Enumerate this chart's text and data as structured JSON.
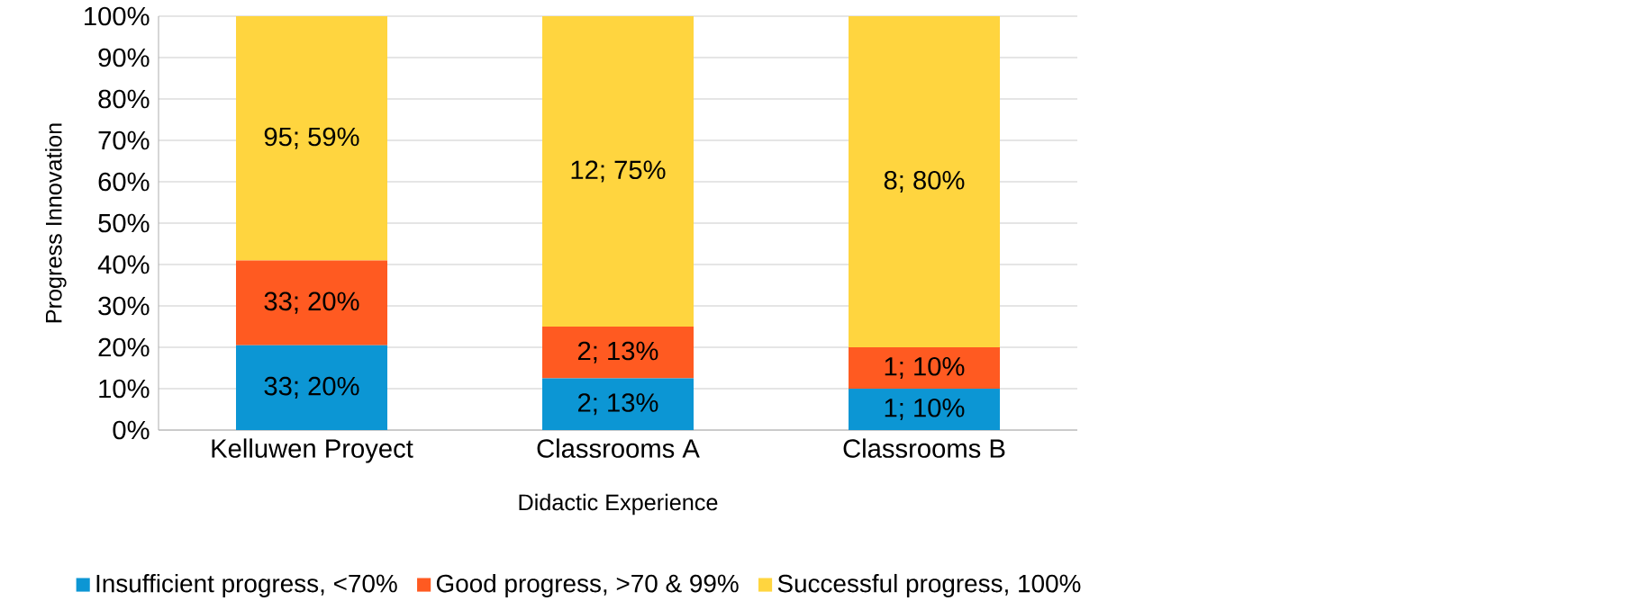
{
  "chart_data": {
    "type": "bar",
    "stacked": true,
    "xlabel": "Didactic Experience",
    "ylabel": "Progress Innovation",
    "categories": [
      "Kelluwen Proyect",
      "Classrooms A",
      "Classrooms B"
    ],
    "series": [
      {
        "name": "Insufficient progress, <70%",
        "color": "#0c96d4",
        "values": [
          20.5,
          12.5,
          10
        ],
        "value_labels": [
          "33; 20%",
          "2; 13%",
          "1; 10%"
        ]
      },
      {
        "name": "Good progress, >70 & 99%",
        "color": "#ff5a21",
        "values": [
          20.5,
          12.5,
          10
        ],
        "value_labels": [
          "33; 20%",
          "2; 13%",
          "1; 10%"
        ]
      },
      {
        "name": "Successful progress, 100%",
        "color": "#ffd53f",
        "values": [
          59,
          75,
          80
        ],
        "value_labels": [
          "95; 59%",
          "12; 75%",
          "8; 80%"
        ]
      }
    ],
    "ylim": [
      0,
      100
    ],
    "yticks": [
      {
        "value": 0,
        "label": "0%"
      },
      {
        "value": 10,
        "label": "10%"
      },
      {
        "value": 20,
        "label": "20%"
      },
      {
        "value": 30,
        "label": "30%"
      },
      {
        "value": 40,
        "label": "40%"
      },
      {
        "value": 50,
        "label": "50%"
      },
      {
        "value": 60,
        "label": "60%"
      },
      {
        "value": 70,
        "label": "70%"
      },
      {
        "value": 80,
        "label": "80%"
      },
      {
        "value": 90,
        "label": "90%"
      },
      {
        "value": 100,
        "label": "100%"
      }
    ],
    "grid": "y",
    "legend": "bottom"
  }
}
